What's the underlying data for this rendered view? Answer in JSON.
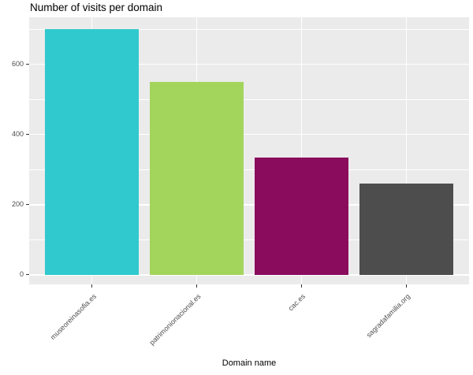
{
  "chart_data": {
    "type": "bar",
    "title": "Number of visits per domain",
    "xlabel": "Domain name",
    "ylabel": "",
    "categories": [
      "museoreinasofia.es",
      "patrimonionacional.es",
      "cac.es",
      "sagradafamilia.org"
    ],
    "values": [
      700,
      550,
      335,
      260
    ],
    "bar_colors": [
      "#30C9CE",
      "#A3D55D",
      "#8A0C5D",
      "#4D4D4D"
    ],
    "ylim": [
      -27,
      734
    ],
    "yticks": [
      0,
      200,
      400,
      600
    ],
    "yticks_minor": [
      100,
      300,
      500,
      700
    ],
    "grid": true,
    "legend": false,
    "panel_bg": "#EBEBEB",
    "grid_color": "#FFFFFF",
    "tick_label_color": "#4D4D4D",
    "x_tick_rotation": -45,
    "bar_width_fraction": 0.9,
    "band_edge_expand": 0.6
  }
}
